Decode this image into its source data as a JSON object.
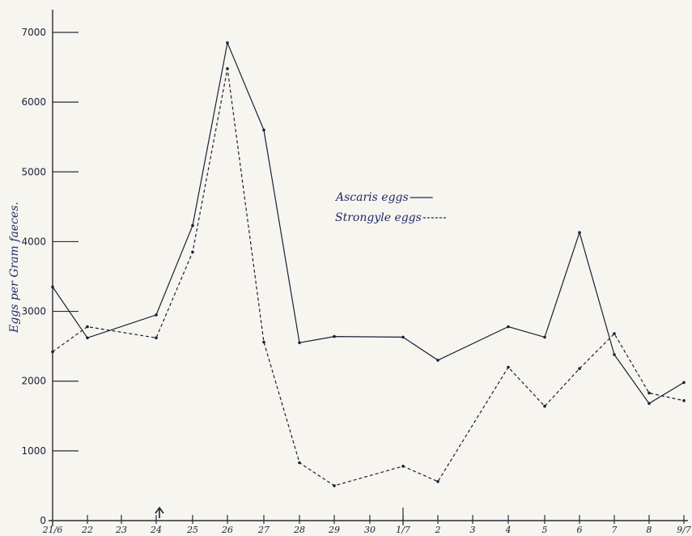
{
  "chart_data": {
    "type": "line",
    "ylabel": "Eggs per Gram faeces.",
    "xlabel": "",
    "ylim": [
      0,
      7000
    ],
    "y_ticks": [
      "0",
      "1000",
      "2000",
      "3000",
      "4000",
      "5000",
      "6000",
      "7000"
    ],
    "categories": [
      "21/6",
      "22",
      "23",
      "24",
      "25",
      "26",
      "27",
      "28",
      "29",
      "30",
      "1/7",
      "2",
      "3",
      "4",
      "5",
      "6",
      "7",
      "8",
      "9/7"
    ],
    "legend_placement": "center",
    "arrow_marker_category": "24",
    "series": [
      {
        "name": "Ascaris eggs",
        "style": "solid",
        "color": "#1e1e3a",
        "points": [
          [
            "21/6",
            3350
          ],
          [
            "22",
            2620
          ],
          [
            "24",
            2950
          ],
          [
            "25",
            4230
          ],
          [
            "26",
            6850
          ],
          [
            "27",
            5600
          ],
          [
            "28",
            2550
          ],
          [
            "29",
            2640
          ],
          [
            "1/7",
            2630
          ],
          [
            "2",
            2300
          ],
          [
            "4",
            2780
          ],
          [
            "5",
            2630
          ],
          [
            "6",
            4130
          ],
          [
            "7",
            2380
          ],
          [
            "8",
            1680
          ],
          [
            "9/7",
            1980
          ]
        ]
      },
      {
        "name": "Strongyle eggs",
        "style": "dashed",
        "color": "#1e1e3a",
        "points": [
          [
            "21/6",
            2420
          ],
          [
            "22",
            2780
          ],
          [
            "24",
            2620
          ],
          [
            "25",
            3850
          ],
          [
            "26",
            6480
          ],
          [
            "27",
            2560
          ],
          [
            "28",
            830
          ],
          [
            "29",
            500
          ],
          [
            "1/7",
            780
          ],
          [
            "2",
            560
          ],
          [
            "4",
            2200
          ],
          [
            "5",
            1640
          ],
          [
            "6",
            2180
          ],
          [
            "7",
            2680
          ],
          [
            "8",
            1830
          ],
          [
            "9/7",
            1720
          ]
        ]
      }
    ]
  }
}
